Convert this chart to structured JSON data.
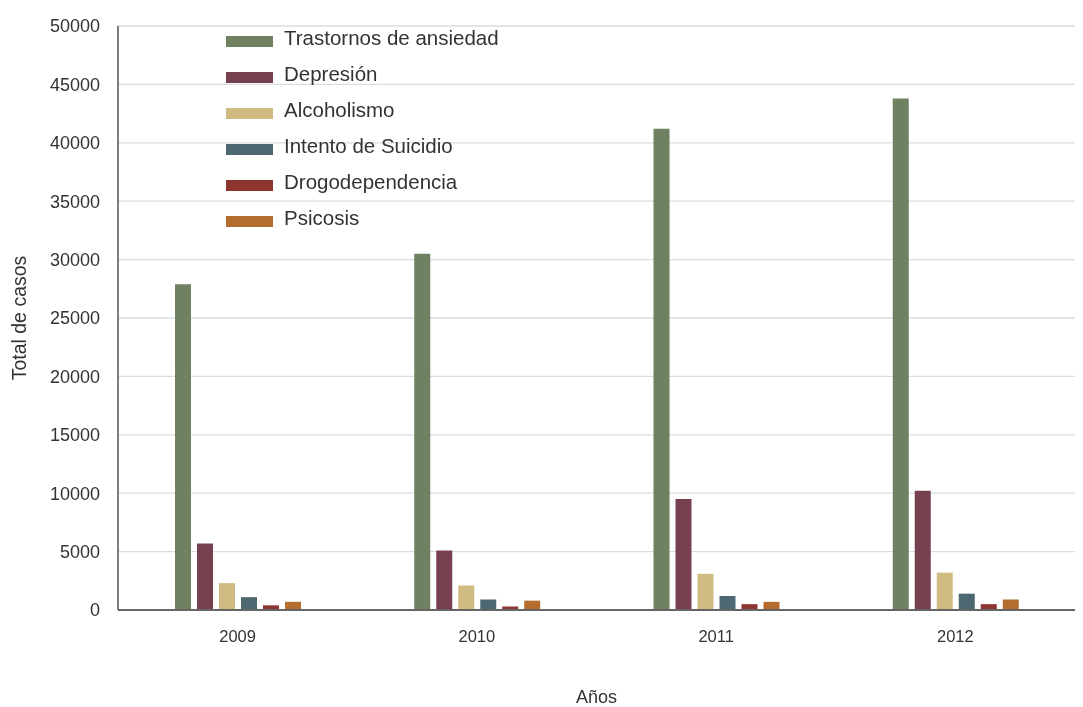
{
  "chart_data": {
    "type": "bar",
    "xlabel": "Años",
    "ylabel": "Total de casos",
    "categories": [
      "2009",
      "2010",
      "2011",
      "2012"
    ],
    "series": [
      {
        "name": "Trastornos de ansiedad",
        "color": "#6f8160",
        "values": [
          27900,
          30500,
          41200,
          43800
        ]
      },
      {
        "name": "Depresión",
        "color": "#77404f",
        "values": [
          5700,
          5100,
          9500,
          10200
        ]
      },
      {
        "name": "Alcoholismo",
        "color": "#cfbb82",
        "values": [
          2300,
          2100,
          3100,
          3200
        ]
      },
      {
        "name": "Intento de Suicidio",
        "color": "#4d6870",
        "values": [
          1100,
          900,
          1200,
          1400
        ]
      },
      {
        "name": "Drogodependencia",
        "color": "#8e3530",
        "values": [
          400,
          300,
          500,
          500
        ]
      },
      {
        "name": "Psicosis",
        "color": "#b46d2e",
        "values": [
          700,
          800,
          700,
          900
        ]
      }
    ],
    "ylim": [
      0,
      50000
    ],
    "yticks": [
      0,
      5000,
      10000,
      15000,
      20000,
      25000,
      30000,
      35000,
      40000,
      45000,
      50000
    ],
    "grid": "y",
    "legend": "top left"
  }
}
